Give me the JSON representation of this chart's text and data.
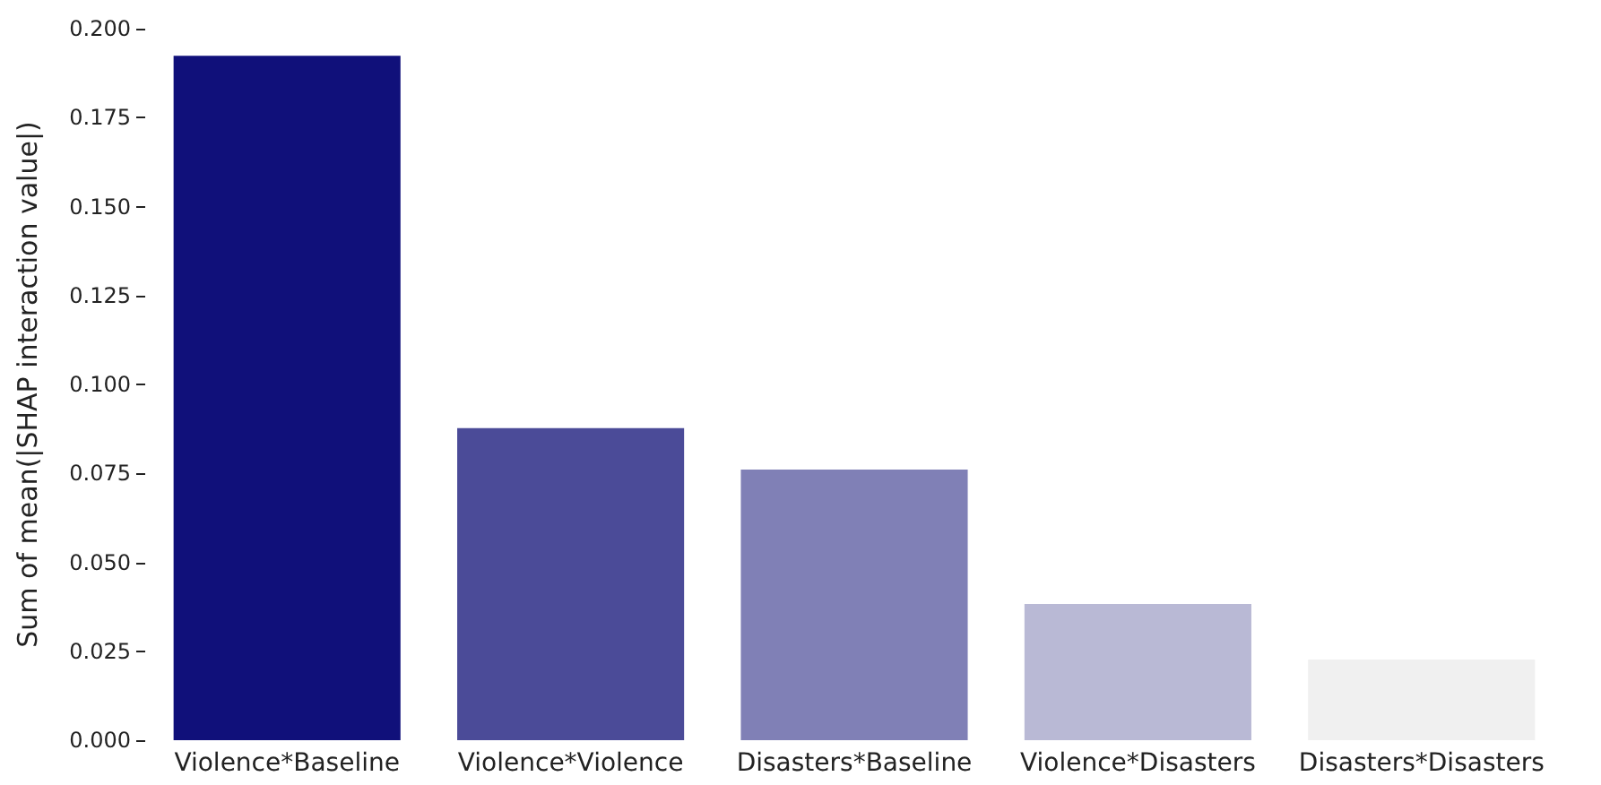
{
  "chart_data": {
    "type": "bar",
    "ylabel": "Sum of mean(|SHAP interaction value|)",
    "categories": [
      "Violence*Baseline",
      "Violence*Violence",
      "Disasters*Baseline",
      "Violence*Disasters",
      "Disasters*Disasters"
    ],
    "values": [
      0.1924,
      0.0877,
      0.0761,
      0.0383,
      0.0227
    ],
    "colors": [
      "#10107a",
      "#4b4b98",
      "#8080b6",
      "#b9b9d5",
      "#f0f0f0"
    ],
    "ylim": [
      0,
      0.2
    ],
    "yticks": [
      {
        "value": 0,
        "label": "0.000"
      },
      {
        "value": 0.025,
        "label": "0.025"
      },
      {
        "value": 0.05,
        "label": "0.050"
      },
      {
        "value": 0.075,
        "label": "0.075"
      },
      {
        "value": 0.1,
        "label": "0.100"
      },
      {
        "value": 0.125,
        "label": "0.125"
      },
      {
        "value": 0.15,
        "label": "0.150"
      },
      {
        "value": 0.175,
        "label": "0.175"
      },
      {
        "value": 0.2,
        "label": "0.200"
      }
    ],
    "grid": false
  }
}
